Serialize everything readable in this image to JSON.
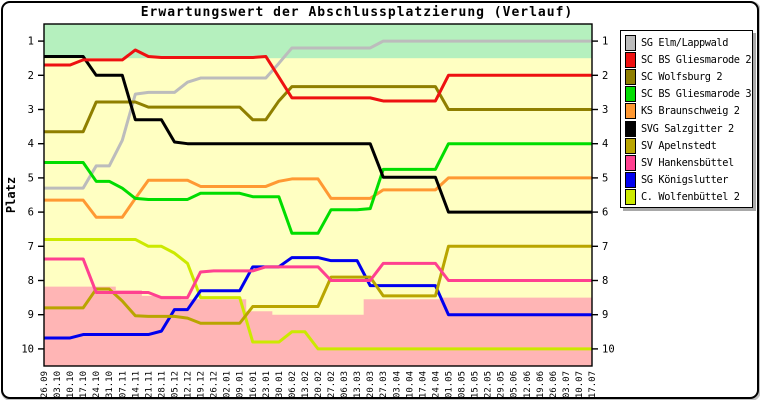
{
  "title": "Erwartungswert der Abschlussplatzierung (Verlauf)",
  "y_axis": {
    "label": "Platz"
  },
  "chart_data": {
    "type": "line",
    "title": "Erwartungswert der Abschlussplatzierung (Verlauf)",
    "xlabel": "",
    "ylabel": "Platz",
    "ylim": [
      0.5,
      10.5
    ],
    "y_inverted_ranking": true,
    "grid": false,
    "legend_position": "right",
    "y_ticks": [
      1,
      2,
      3,
      4,
      5,
      6,
      7,
      8,
      9,
      10
    ],
    "x_labels": [
      "26.09",
      "03.10",
      "10.10",
      "17.10",
      "24.10",
      "31.10",
      "07.11",
      "14.11",
      "21.11",
      "28.11",
      "05.12",
      "12.12",
      "19.12",
      "26.12",
      "02.01",
      "09.01",
      "16.01",
      "23.01",
      "30.01",
      "06.02",
      "13.02",
      "20.02",
      "27.02",
      "06.03",
      "13.03",
      "20.03",
      "27.03",
      "03.04",
      "10.04",
      "17.04",
      "24.04",
      "01.05",
      "08.05",
      "15.05",
      "22.05",
      "29.05",
      "05.06",
      "12.06",
      "19.06",
      "26.06",
      "03.07",
      "10.07",
      "17.07"
    ],
    "zones": {
      "championship": {
        "color": "#b5f0be",
        "from": 0.5,
        "to": 1.5
      },
      "neutral_color": "#ffffc2",
      "relegation": {
        "color": "#ffb5b5",
        "boundary": [
          8.18,
          8.18,
          8.18,
          8.18,
          8.18,
          8.18,
          8.28,
          8.28,
          8.45,
          8.45,
          8.45,
          8.55,
          8.55,
          8.55,
          8.55,
          8.55,
          8.9,
          8.9,
          9.0,
          9.0,
          9.0,
          9.0,
          9.0,
          9.0,
          9.0,
          8.55,
          8.55,
          8.55,
          8.55,
          8.55,
          8.55,
          8.5,
          8.5,
          8.5,
          8.5,
          8.5,
          8.5,
          8.5,
          8.5,
          8.5,
          8.5,
          8.5,
          8.5
        ]
      }
    },
    "series": [
      {
        "name": "SG Elm/Lappwald",
        "color": "#bcbcbc",
        "values": [
          5.3,
          5.3,
          5.3,
          5.3,
          4.65,
          4.65,
          3.9,
          2.55,
          2.5,
          2.5,
          2.5,
          2.2,
          2.08,
          2.08,
          2.08,
          2.08,
          2.08,
          2.08,
          1.65,
          1.2,
          1.2,
          1.2,
          1.2,
          1.2,
          1.2,
          1.2,
          1.0,
          1.0,
          1.0,
          1.0,
          1.0,
          1.0,
          1.0,
          1.0,
          1.0,
          1.0,
          1.0,
          1.0,
          1.0,
          1.0,
          1.0,
          1.0,
          1.0
        ]
      },
      {
        "name": "SC BS Gliesmarode 2",
        "color": "#ee1111",
        "values": [
          1.7,
          1.7,
          1.7,
          1.55,
          1.55,
          1.55,
          1.55,
          1.26,
          1.45,
          1.48,
          1.48,
          1.48,
          1.48,
          1.48,
          1.48,
          1.48,
          1.48,
          1.45,
          2.05,
          2.66,
          2.66,
          2.66,
          2.66,
          2.66,
          2.66,
          2.66,
          2.75,
          2.75,
          2.75,
          2.75,
          2.75,
          2.0,
          2.0,
          2.0,
          2.0,
          2.0,
          2.0,
          2.0,
          2.0,
          2.0,
          2.0,
          2.0,
          2.0
        ]
      },
      {
        "name": "SC Wolfsburg 2",
        "color": "#8f7f00",
        "values": [
          3.65,
          3.65,
          3.65,
          3.65,
          2.78,
          2.78,
          2.78,
          2.78,
          2.93,
          2.93,
          2.93,
          2.93,
          2.93,
          2.93,
          2.93,
          2.93,
          3.3,
          3.3,
          2.75,
          2.33,
          2.33,
          2.33,
          2.33,
          2.33,
          2.33,
          2.33,
          2.33,
          2.33,
          2.33,
          2.33,
          2.33,
          3.0,
          3.0,
          3.0,
          3.0,
          3.0,
          3.0,
          3.0,
          3.0,
          3.0,
          3.0,
          3.0,
          3.0
        ]
      },
      {
        "name": "SC BS Gliesmarode 3",
        "color": "#00dd00",
        "values": [
          4.55,
          4.55,
          4.55,
          4.55,
          5.1,
          5.1,
          5.3,
          5.6,
          5.63,
          5.63,
          5.63,
          5.63,
          5.45,
          5.45,
          5.45,
          5.45,
          5.55,
          5.55,
          5.55,
          6.62,
          6.62,
          6.62,
          5.93,
          5.93,
          5.93,
          5.9,
          4.75,
          4.75,
          4.75,
          4.75,
          4.75,
          4.0,
          4.0,
          4.0,
          4.0,
          4.0,
          4.0,
          4.0,
          4.0,
          4.0,
          4.0,
          4.0,
          4.0
        ]
      },
      {
        "name": "KS Braunschweig 2",
        "color": "#ff9933",
        "values": [
          5.65,
          5.65,
          5.65,
          5.65,
          6.15,
          6.15,
          6.15,
          5.6,
          5.07,
          5.07,
          5.07,
          5.07,
          5.25,
          5.25,
          5.25,
          5.25,
          5.25,
          5.25,
          5.1,
          5.03,
          5.03,
          5.03,
          5.6,
          5.6,
          5.6,
          5.6,
          5.35,
          5.35,
          5.35,
          5.35,
          5.35,
          5.0,
          5.0,
          5.0,
          5.0,
          5.0,
          5.0,
          5.0,
          5.0,
          5.0,
          5.0,
          5.0,
          5.0
        ]
      },
      {
        "name": "SVG Salzgitter 2",
        "color": "#000000",
        "values": [
          1.45,
          1.45,
          1.45,
          1.45,
          2.0,
          2.0,
          2.0,
          3.3,
          3.3,
          3.3,
          3.95,
          4.0,
          4.0,
          4.0,
          4.0,
          4.0,
          4.0,
          4.0,
          4.0,
          4.0,
          4.0,
          4.0,
          4.0,
          4.0,
          4.0,
          4.0,
          4.98,
          4.98,
          4.98,
          4.98,
          4.98,
          6.0,
          6.0,
          6.0,
          6.0,
          6.0,
          6.0,
          6.0,
          6.0,
          6.0,
          6.0,
          6.0,
          6.0
        ]
      },
      {
        "name": "SV Apelnstedt",
        "color": "#b9a500",
        "values": [
          8.8,
          8.8,
          8.8,
          8.8,
          8.25,
          8.25,
          8.6,
          9.03,
          9.05,
          9.05,
          9.05,
          9.1,
          9.25,
          9.25,
          9.25,
          9.25,
          8.76,
          8.76,
          8.76,
          8.76,
          8.76,
          8.76,
          7.9,
          7.9,
          7.9,
          7.9,
          8.45,
          8.45,
          8.45,
          8.45,
          8.45,
          7.0,
          7.0,
          7.0,
          7.0,
          7.0,
          7.0,
          7.0,
          7.0,
          7.0,
          7.0,
          7.0,
          7.0
        ]
      },
      {
        "name": "SV Hankensbüttel",
        "color": "#ff4090",
        "values": [
          7.37,
          7.37,
          7.37,
          7.37,
          8.35,
          8.35,
          8.35,
          8.35,
          8.35,
          8.5,
          8.5,
          8.5,
          7.75,
          7.72,
          7.72,
          7.72,
          7.72,
          7.6,
          7.6,
          7.6,
          7.6,
          7.6,
          8.0,
          8.0,
          8.0,
          8.0,
          7.5,
          7.5,
          7.5,
          7.5,
          7.5,
          8.0,
          8.0,
          8.0,
          8.0,
          8.0,
          8.0,
          8.0,
          8.0,
          8.0,
          8.0,
          8.0,
          8.0
        ]
      },
      {
        "name": "SG Königslutter",
        "color": "#0000ee",
        "values": [
          9.68,
          9.68,
          9.68,
          9.58,
          9.58,
          9.58,
          9.58,
          9.58,
          9.58,
          9.48,
          8.85,
          8.85,
          8.3,
          8.3,
          8.3,
          8.3,
          7.6,
          7.6,
          7.6,
          7.33,
          7.33,
          7.33,
          7.42,
          7.42,
          7.42,
          8.15,
          8.15,
          8.15,
          8.15,
          8.15,
          8.15,
          9.0,
          9.0,
          9.0,
          9.0,
          9.0,
          9.0,
          9.0,
          9.0,
          9.0,
          9.0,
          9.0,
          9.0
        ]
      },
      {
        "name": "C. Wolfenbüttel 2",
        "color": "#cce900",
        "values": [
          6.8,
          6.8,
          6.8,
          6.8,
          6.8,
          6.8,
          6.8,
          6.8,
          7.0,
          7.0,
          7.2,
          7.5,
          8.5,
          8.5,
          8.5,
          8.5,
          9.8,
          9.8,
          9.8,
          9.5,
          9.5,
          10.0,
          10.0,
          10.0,
          10.0,
          10.0,
          10.0,
          10.0,
          10.0,
          10.0,
          10.0,
          10.0,
          10.0,
          10.0,
          10.0,
          10.0,
          10.0,
          10.0,
          10.0,
          10.0,
          10.0,
          10.0,
          10.0
        ]
      }
    ]
  }
}
